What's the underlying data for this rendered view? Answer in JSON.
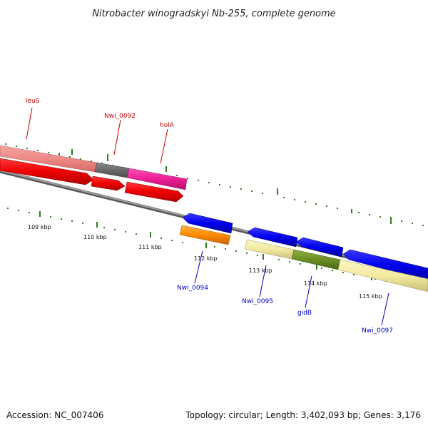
{
  "title": "Nitrobacter winogradskyi Nb-255, complete genome",
  "footer": {
    "accession": "Accession: NC_007406",
    "summary": "Topology: circular; Length: 3,402,093 bp; Genes: 3,176"
  },
  "colors": {
    "backbone": "#808080",
    "tick": "#2e7d1e",
    "forward_label": "#cc0000",
    "reverse_label": "#0000cc"
  },
  "scale_labels": [
    "109 kbp",
    "110 kbp",
    "111 kbp",
    "112 kbp",
    "113 kbp",
    "114 kbp",
    "115 kbp"
  ],
  "genes": {
    "leuS": "leuS",
    "nwi_0092": "Nwi_0092",
    "holA": "holA",
    "nwi_0094": "Nwi_0094",
    "nwi_0095": "Nwi_0095",
    "gidB": "gidB",
    "nwi_0097": "Nwi_0097"
  }
}
